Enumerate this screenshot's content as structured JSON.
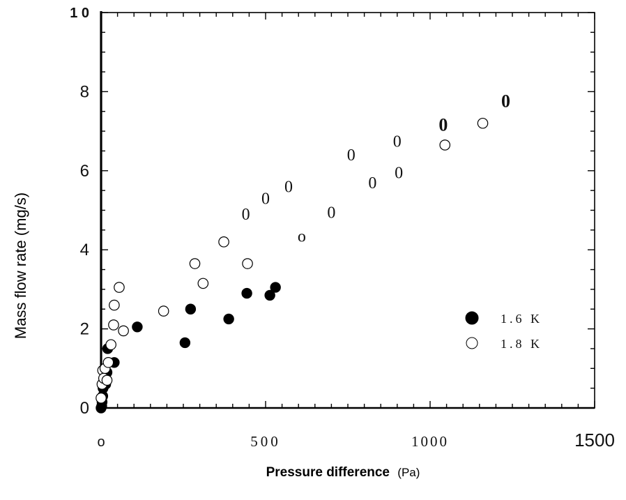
{
  "chart_data": {
    "type": "scatter",
    "title": "",
    "xlabel_bold": "Pressure difference",
    "xlabel_unit": "(Pa)",
    "ylabel": "Mass flow rate (mg/s)",
    "xlim": [
      0,
      1500
    ],
    "ylim": [
      0,
      10
    ],
    "x_tick_labels": [
      {
        "value": 0,
        "label": "o"
      },
      {
        "value": 500,
        "label": "500"
      },
      {
        "value": 1000,
        "label": "1000"
      },
      {
        "value": 1500,
        "label": "1500"
      }
    ],
    "y_tick_labels": [
      {
        "value": 0,
        "label": "0"
      },
      {
        "value": 2,
        "label": "2"
      },
      {
        "value": 4,
        "label": "4"
      },
      {
        "value": 6,
        "label": "6"
      },
      {
        "value": 8,
        "label": "8"
      },
      {
        "value": 10,
        "label": "1 0"
      }
    ],
    "grid": false,
    "legend_position": "right-middle",
    "series": [
      {
        "name": "1.6 K",
        "marker": "filled",
        "color": "#000000",
        "points": [
          [
            0,
            0.0
          ],
          [
            2,
            0.05
          ],
          [
            3,
            0.15
          ],
          [
            5,
            0.3
          ],
          [
            6,
            0.5
          ],
          [
            14,
            0.6
          ],
          [
            18,
            0.9
          ],
          [
            20,
            1.5
          ],
          [
            40,
            1.15
          ],
          [
            110,
            2.05
          ],
          [
            255,
            1.65
          ],
          [
            272,
            2.5
          ],
          [
            388,
            2.25
          ],
          [
            443,
            2.9
          ],
          [
            513,
            2.85
          ],
          [
            530,
            3.05
          ]
        ]
      },
      {
        "name": "1.8 K",
        "marker": "open",
        "color": "#000000",
        "points": [
          [
            0,
            0.25
          ],
          [
            3,
            0.6
          ],
          [
            5,
            0.95
          ],
          [
            8,
            0.75
          ],
          [
            12,
            1.0
          ],
          [
            18,
            0.7
          ],
          [
            22,
            1.15
          ],
          [
            30,
            1.6
          ],
          [
            38,
            2.1
          ],
          [
            40,
            2.6
          ],
          [
            55,
            3.05
          ],
          [
            68,
            1.95
          ],
          [
            190,
            2.45
          ],
          [
            285,
            3.65
          ],
          [
            310,
            3.15
          ],
          [
            373,
            4.2
          ],
          [
            445,
            3.65
          ],
          [
            1045,
            6.65
          ],
          [
            1160,
            7.2
          ]
        ]
      }
    ],
    "annotations": [
      {
        "text": "0",
        "x": 440,
        "y": 4.9,
        "bold": false
      },
      {
        "text": "0",
        "x": 500,
        "y": 5.3,
        "bold": false
      },
      {
        "text": "0",
        "x": 570,
        "y": 5.6,
        "bold": false
      },
      {
        "text": "o",
        "x": 610,
        "y": 4.35,
        "bold": false
      },
      {
        "text": "0",
        "x": 700,
        "y": 4.95,
        "bold": false
      },
      {
        "text": "0",
        "x": 760,
        "y": 6.4,
        "bold": false
      },
      {
        "text": "0",
        "x": 825,
        "y": 5.7,
        "bold": false
      },
      {
        "text": "0",
        "x": 900,
        "y": 6.75,
        "bold": false
      },
      {
        "text": "0",
        "x": 905,
        "y": 5.95,
        "bold": false
      },
      {
        "text": "0",
        "x": 1040,
        "y": 7.15,
        "bold": true
      },
      {
        "text": "0",
        "x": 1230,
        "y": 7.75,
        "bold": true
      }
    ]
  }
}
